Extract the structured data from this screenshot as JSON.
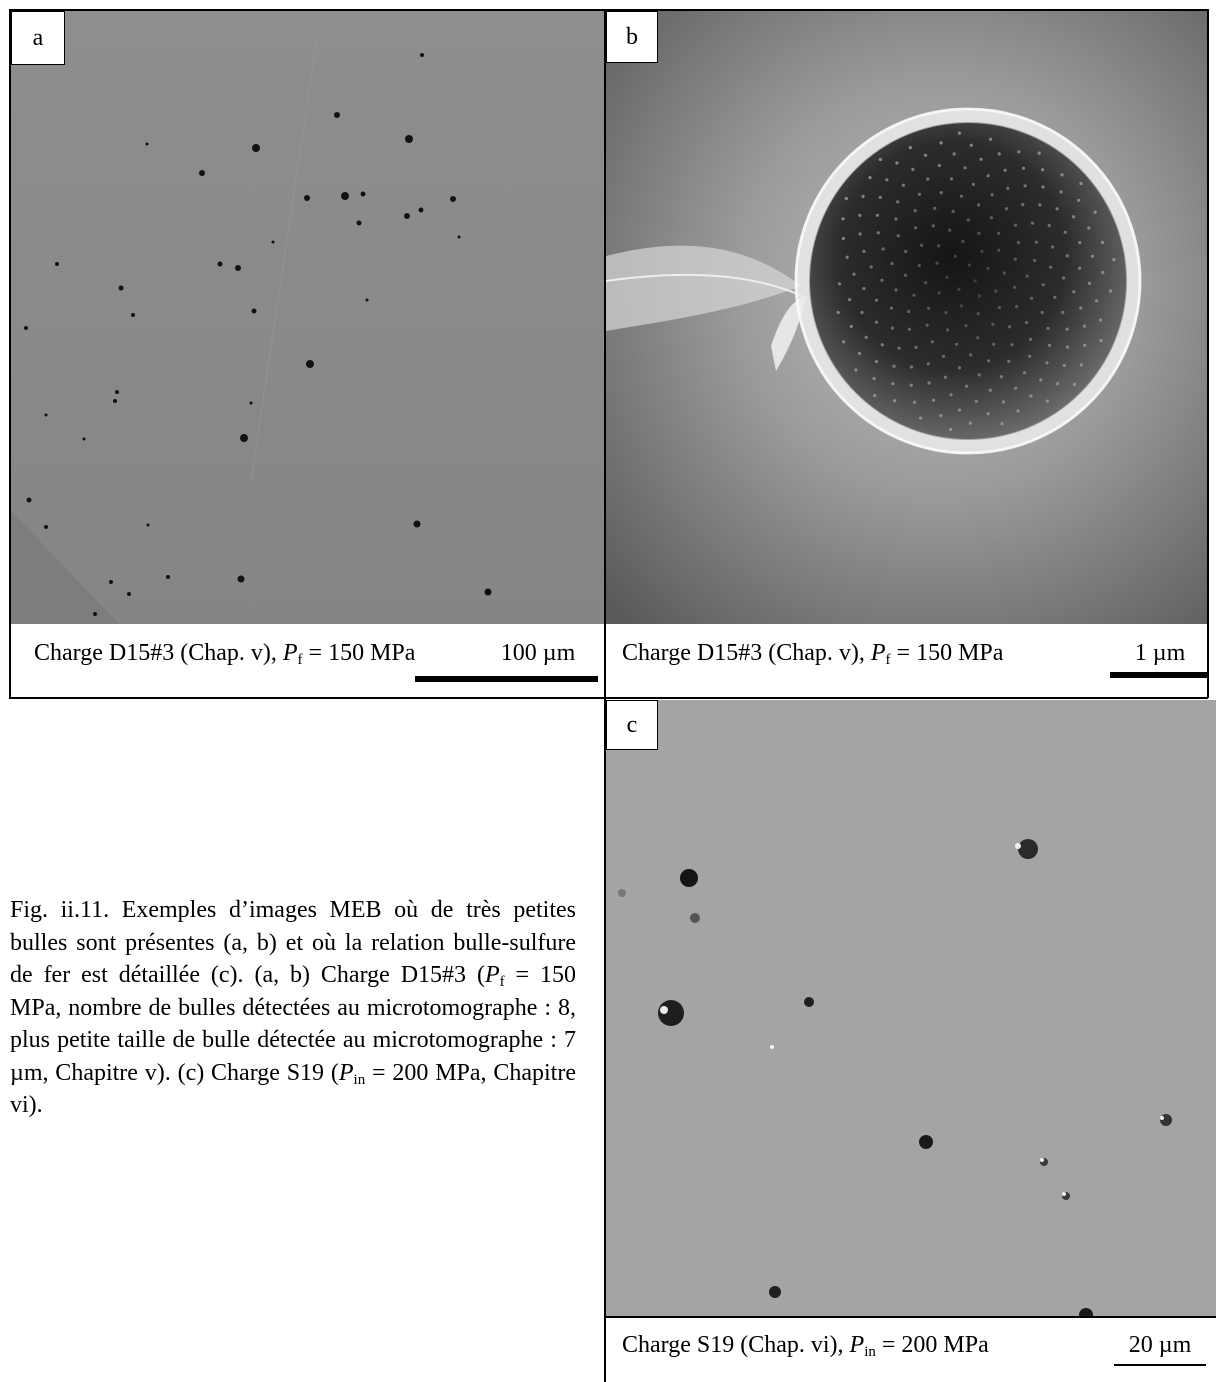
{
  "panels": {
    "a": {
      "label": "a",
      "caption_prefix": "Charge D15#3 (Chap. v), ",
      "caption_var": "P",
      "caption_sub": "f",
      "caption_suffix": " = 150 MPa",
      "scale_label": "100 µm"
    },
    "b": {
      "label": "b",
      "caption_prefix": "Charge D15#3 (Chap. v), ",
      "caption_var": "P",
      "caption_sub": "f",
      "caption_suffix": " = 150 MPa",
      "scale_label": "1 µm"
    },
    "c": {
      "label": "c",
      "caption_prefix": "Charge S19 (Chap. vi), ",
      "caption_var": "P",
      "caption_sub": "in",
      "caption_suffix": " = 200 MPa",
      "scale_label": "20 µm"
    }
  },
  "figure_caption": {
    "part1": "Fig. ii.11. Exemples d’images MEB où de très petites bulles sont présentes (a, b) et où la relation bulle-sulfure de fer est détaillée (c). (a, b) Charge D15#3 (",
    "var1": "P",
    "sub1": "f",
    "part2": " = 150 MPa, nombre de bulles détectées au microtomographe : 8, plus petite taille de bulle détectée au microtomographe : 7 µm, Chapitre v). (c) Charge S19 (",
    "var2": "P",
    "sub2": "in",
    "part3": " = 200 MPa, Chapitre vi)."
  },
  "colors": {
    "sem_background_a": "#8a8a8a",
    "sem_background_c": "#a3a3a3",
    "pore": "#111111"
  }
}
